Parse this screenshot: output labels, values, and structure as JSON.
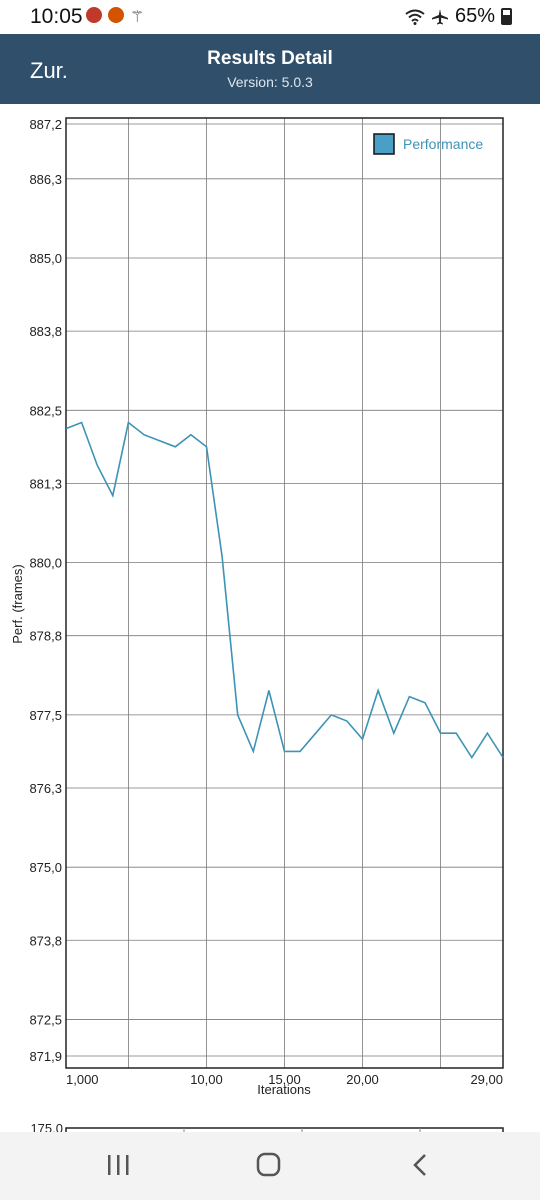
{
  "status_bar": {
    "time": "10:05",
    "battery": "65%",
    "icons": [
      "fire-notification-icon",
      "fire-notification-icon",
      "wand-icon",
      "wifi-icon",
      "airplane-icon",
      "battery-icon"
    ]
  },
  "app_bar": {
    "back_label": "Zur.",
    "title": "Results Detail",
    "version": "Version: 5.0.3",
    "background": "#2f4f6b"
  },
  "chart_data": {
    "type": "line",
    "ylabel": "Perf. (frames)",
    "xlabel": "Iterations",
    "ylim": [
      871.9,
      887.2
    ],
    "xlim": [
      1,
      29
    ],
    "y_ticks": [
      "887,2",
      "886,3",
      "885,0",
      "883,8",
      "882,5",
      "881,3",
      "880,0",
      "878,8",
      "877,5",
      "876,3",
      "875,0",
      "873,8",
      "872,5",
      "871,9"
    ],
    "y_tick_values": [
      887.2,
      886.3,
      885.0,
      883.8,
      882.5,
      881.3,
      880.0,
      878.8,
      877.5,
      876.3,
      875.0,
      873.8,
      872.5,
      871.9
    ],
    "x_ticks": [
      "1,000",
      "10,00",
      "15,00",
      "20,00",
      "29,00"
    ],
    "x_tick_values": [
      1,
      10,
      15,
      20,
      29
    ],
    "x_grid": [
      1,
      5,
      10,
      15,
      20,
      25,
      29
    ],
    "grid": true,
    "legend_position": "top-right",
    "series": [
      {
        "name": "Performance",
        "color": "#3d93b5",
        "x": [
          1,
          2,
          3,
          4,
          5,
          6,
          7,
          8,
          9,
          10,
          11,
          12,
          13,
          14,
          15,
          16,
          17,
          18,
          19,
          20,
          21,
          22,
          23,
          24,
          25,
          26,
          27,
          28,
          29
        ],
        "values": [
          882.2,
          882.3,
          881.6,
          881.1,
          882.3,
          882.1,
          882.0,
          881.9,
          882.1,
          881.9,
          880.1,
          877.5,
          876.9,
          877.9,
          876.9,
          876.9,
          877.2,
          877.5,
          877.4,
          877.1,
          877.9,
          877.2,
          877.8,
          877.7,
          877.2,
          877.2,
          876.8,
          877.2,
          876.8
        ]
      }
    ]
  },
  "second_chart": {
    "y_top_label": "175,0"
  },
  "nav_bar": {
    "recents": "recents",
    "home": "home",
    "back": "back"
  }
}
